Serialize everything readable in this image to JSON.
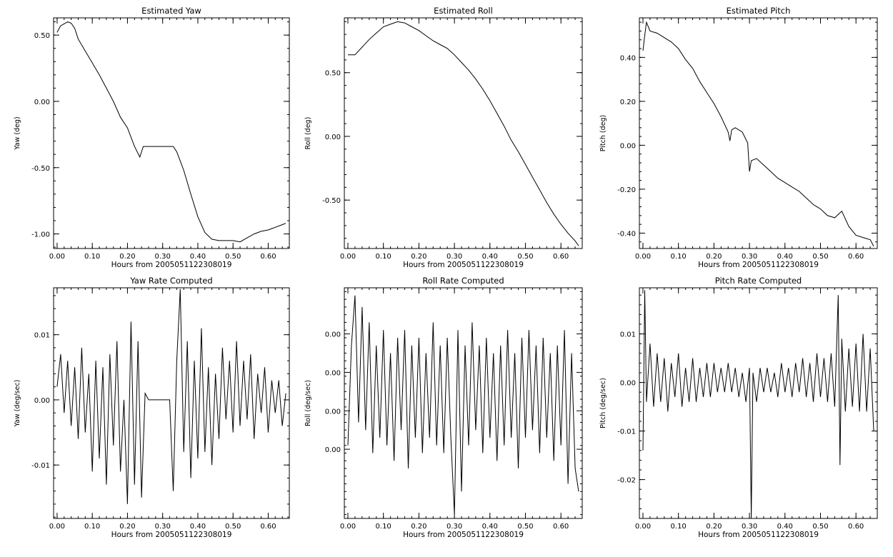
{
  "chart_data": [
    {
      "type": "line",
      "title": "Estimated Yaw",
      "xlabel": "Hours from 2005051122308019",
      "ylabel": "Yaw (deg)",
      "xlim": [
        -0.01,
        0.66
      ],
      "ylim": [
        -1.11,
        0.63
      ],
      "xticks": [
        0.0,
        0.1,
        0.2,
        0.3,
        0.4,
        0.5,
        0.6
      ],
      "xtick_labels": [
        "0.00",
        "0.10",
        "0.20",
        "0.30",
        "0.40",
        "0.50",
        "0.60"
      ],
      "yticks": [
        0.5,
        0.0,
        -0.5,
        -1.0
      ],
      "ytick_labels": [
        "0.50",
        "0.00",
        "-0.50",
        "-1.00"
      ],
      "grid": false,
      "series": [
        {
          "x": [
            0.0,
            0.01,
            0.03,
            0.04,
            0.05,
            0.06,
            0.08,
            0.1,
            0.12,
            0.14,
            0.16,
            0.18,
            0.2,
            0.22,
            0.235,
            0.245,
            0.25,
            0.26,
            0.3,
            0.33,
            0.34,
            0.36,
            0.38,
            0.4,
            0.42,
            0.44,
            0.46,
            0.48,
            0.5,
            0.52,
            0.54,
            0.56,
            0.58,
            0.6,
            0.62,
            0.64,
            0.65
          ],
          "y": [
            0.52,
            0.57,
            0.6,
            0.59,
            0.55,
            0.47,
            0.38,
            0.29,
            0.2,
            0.1,
            0.0,
            -0.12,
            -0.2,
            -0.34,
            -0.42,
            -0.34,
            -0.34,
            -0.34,
            -0.34,
            -0.34,
            -0.38,
            -0.52,
            -0.7,
            -0.87,
            -0.99,
            -1.04,
            -1.05,
            -1.05,
            -1.05,
            -1.06,
            -1.03,
            -1.0,
            -0.98,
            -0.97,
            -0.95,
            -0.93,
            -0.92
          ]
        }
      ]
    },
    {
      "type": "line",
      "title": "Estimated Roll",
      "xlabel": "Hours from 2005051122308019",
      "ylabel": "Roll (deg)",
      "xlim": [
        -0.01,
        0.66
      ],
      "ylim": [
        -0.88,
        0.93
      ],
      "xticks": [
        0.0,
        0.1,
        0.2,
        0.3,
        0.4,
        0.5,
        0.6
      ],
      "xtick_labels": [
        "0.00",
        "0.10",
        "0.20",
        "0.30",
        "0.40",
        "0.50",
        "0.60"
      ],
      "yticks": [
        0.5,
        0.0,
        -0.5
      ],
      "ytick_labels": [
        "0.50",
        "0.00",
        "-0.50"
      ],
      "grid": false,
      "series": [
        {
          "x": [
            0.0,
            0.02,
            0.04,
            0.06,
            0.08,
            0.1,
            0.12,
            0.14,
            0.16,
            0.18,
            0.2,
            0.22,
            0.24,
            0.26,
            0.28,
            0.3,
            0.32,
            0.34,
            0.36,
            0.38,
            0.4,
            0.42,
            0.44,
            0.46,
            0.48,
            0.5,
            0.52,
            0.54,
            0.56,
            0.58,
            0.6,
            0.62,
            0.64,
            0.65
          ],
          "y": [
            0.64,
            0.64,
            0.7,
            0.76,
            0.81,
            0.86,
            0.88,
            0.9,
            0.89,
            0.86,
            0.83,
            0.79,
            0.75,
            0.72,
            0.69,
            0.64,
            0.58,
            0.52,
            0.45,
            0.37,
            0.28,
            0.18,
            0.08,
            -0.03,
            -0.12,
            -0.22,
            -0.32,
            -0.42,
            -0.52,
            -0.61,
            -0.69,
            -0.76,
            -0.82,
            -0.86
          ]
        }
      ]
    },
    {
      "type": "line",
      "title": "Estimated Pitch",
      "xlabel": "Hours from 2005051122308019",
      "ylabel": "Pitch (deg)",
      "xlim": [
        -0.01,
        0.66
      ],
      "ylim": [
        -0.47,
        0.58
      ],
      "xticks": [
        0.0,
        0.1,
        0.2,
        0.3,
        0.4,
        0.5,
        0.6
      ],
      "xtick_labels": [
        "0.00",
        "0.10",
        "0.20",
        "0.30",
        "0.40",
        "0.50",
        "0.60"
      ],
      "yticks": [
        0.4,
        0.2,
        0.0,
        -0.2,
        -0.4
      ],
      "ytick_labels": [
        "0.40",
        "0.20",
        "0.00",
        "-0.20",
        "-0.40"
      ],
      "grid": false,
      "series": [
        {
          "x": [
            0.0,
            0.005,
            0.01,
            0.02,
            0.04,
            0.06,
            0.08,
            0.1,
            0.12,
            0.14,
            0.16,
            0.18,
            0.2,
            0.22,
            0.24,
            0.245,
            0.25,
            0.26,
            0.28,
            0.295,
            0.3,
            0.305,
            0.32,
            0.34,
            0.36,
            0.38,
            0.4,
            0.42,
            0.44,
            0.46,
            0.48,
            0.5,
            0.52,
            0.54,
            0.56,
            0.58,
            0.6,
            0.62,
            0.64,
            0.65
          ],
          "y": [
            0.43,
            0.5,
            0.56,
            0.52,
            0.51,
            0.49,
            0.47,
            0.44,
            0.39,
            0.35,
            0.29,
            0.24,
            0.19,
            0.13,
            0.06,
            0.02,
            0.07,
            0.08,
            0.06,
            0.01,
            -0.12,
            -0.07,
            -0.06,
            -0.09,
            -0.12,
            -0.15,
            -0.17,
            -0.19,
            -0.21,
            -0.24,
            -0.27,
            -0.29,
            -0.32,
            -0.33,
            -0.3,
            -0.37,
            -0.41,
            -0.42,
            -0.43,
            -0.46
          ]
        }
      ]
    },
    {
      "type": "line",
      "title": "Yaw Rate Computed",
      "xlabel": "Hours from 2005051122308019",
      "ylabel": "Yaw (deg/sec)",
      "xlim": [
        -0.01,
        0.66
      ],
      "ylim": [
        -0.0182,
        0.0172
      ],
      "xticks": [
        0.0,
        0.1,
        0.2,
        0.3,
        0.4,
        0.5,
        0.6
      ],
      "xtick_labels": [
        "0.00",
        "0.10",
        "0.20",
        "0.30",
        "0.40",
        "0.50",
        "0.60"
      ],
      "yticks": [
        0.01,
        0.0,
        -0.01
      ],
      "ytick_labels": [
        "0.01",
        "0.00",
        "-0.01"
      ],
      "grid": false,
      "series": [
        {
          "x": [
            0.0,
            0.01,
            0.02,
            0.03,
            0.04,
            0.05,
            0.06,
            0.07,
            0.08,
            0.09,
            0.1,
            0.11,
            0.12,
            0.13,
            0.14,
            0.15,
            0.16,
            0.17,
            0.18,
            0.19,
            0.2,
            0.21,
            0.22,
            0.23,
            0.24,
            0.25,
            0.26,
            0.32,
            0.33,
            0.34,
            0.35,
            0.36,
            0.37,
            0.38,
            0.39,
            0.4,
            0.41,
            0.42,
            0.43,
            0.44,
            0.45,
            0.46,
            0.47,
            0.48,
            0.49,
            0.5,
            0.51,
            0.52,
            0.53,
            0.54,
            0.55,
            0.56,
            0.57,
            0.58,
            0.59,
            0.6,
            0.61,
            0.62,
            0.63,
            0.64,
            0.65
          ],
          "y": [
            0.002,
            0.007,
            -0.002,
            0.006,
            -0.004,
            0.005,
            -0.006,
            0.008,
            -0.005,
            0.004,
            -0.011,
            0.006,
            -0.009,
            0.005,
            -0.013,
            0.007,
            -0.007,
            0.009,
            -0.011,
            0.0,
            -0.016,
            0.012,
            -0.013,
            0.009,
            -0.015,
            0.001,
            0.0,
            0.0,
            -0.014,
            0.006,
            0.017,
            -0.008,
            0.009,
            -0.012,
            0.006,
            -0.009,
            0.011,
            -0.008,
            0.005,
            -0.01,
            0.004,
            -0.006,
            0.008,
            -0.003,
            0.006,
            -0.005,
            0.009,
            -0.004,
            0.006,
            -0.003,
            0.007,
            -0.006,
            0.004,
            -0.002,
            0.005,
            -0.005,
            0.003,
            -0.002,
            0.003,
            -0.004,
            0.001
          ]
        }
      ]
    },
    {
      "type": "line",
      "title": "Roll Rate Computed",
      "xlabel": "Hours from 2005051122308019",
      "ylabel": "Roll (deg/sec)",
      "xlim": [
        -0.01,
        0.66
      ],
      "ylim": [
        -0.0165,
        0.0135
      ],
      "xticks": [
        0.0,
        0.1,
        0.2,
        0.3,
        0.4,
        0.5,
        0.6
      ],
      "xtick_labels": [
        "0.00",
        "0.10",
        "0.20",
        "0.30",
        "0.40",
        "0.50",
        "0.60"
      ],
      "yticks": [
        0.0075,
        0.0025,
        -0.0025,
        -0.0075
      ],
      "ytick_labels": [
        "0.00",
        "0.00",
        "0.00",
        "0.00"
      ],
      "grid": false,
      "series": [
        {
          "x": [
            0.0,
            0.01,
            0.02,
            0.03,
            0.04,
            0.05,
            0.06,
            0.07,
            0.08,
            0.09,
            0.1,
            0.11,
            0.12,
            0.13,
            0.14,
            0.15,
            0.16,
            0.17,
            0.18,
            0.19,
            0.2,
            0.21,
            0.22,
            0.23,
            0.24,
            0.25,
            0.26,
            0.27,
            0.28,
            0.29,
            0.3,
            0.31,
            0.32,
            0.33,
            0.34,
            0.35,
            0.36,
            0.37,
            0.38,
            0.39,
            0.4,
            0.41,
            0.42,
            0.43,
            0.44,
            0.45,
            0.46,
            0.47,
            0.48,
            0.49,
            0.5,
            0.51,
            0.52,
            0.53,
            0.54,
            0.55,
            0.56,
            0.57,
            0.58,
            0.59,
            0.6,
            0.61,
            0.62,
            0.63,
            0.64,
            0.65
          ],
          "y": [
            -0.007,
            0.006,
            0.0125,
            -0.004,
            0.011,
            -0.005,
            0.009,
            -0.008,
            0.006,
            -0.006,
            0.008,
            -0.007,
            0.005,
            -0.009,
            0.007,
            -0.005,
            0.008,
            -0.01,
            0.006,
            -0.006,
            0.007,
            -0.008,
            0.005,
            -0.006,
            0.009,
            -0.007,
            0.006,
            -0.008,
            0.007,
            -0.006,
            -0.016,
            0.008,
            -0.013,
            0.006,
            -0.007,
            0.009,
            -0.005,
            0.006,
            -0.008,
            0.007,
            -0.006,
            0.005,
            -0.009,
            0.006,
            -0.007,
            0.008,
            -0.006,
            0.005,
            -0.01,
            0.007,
            -0.006,
            0.008,
            -0.005,
            0.006,
            -0.008,
            0.007,
            -0.006,
            0.005,
            -0.009,
            0.006,
            -0.007,
            0.008,
            -0.012,
            0.005,
            -0.01,
            -0.013
          ]
        }
      ]
    },
    {
      "type": "line",
      "title": "Pitch Rate Computed",
      "xlabel": "Hours from 2005051122308019",
      "ylabel": "Pitch (deg/sec)",
      "xlim": [
        -0.01,
        0.66
      ],
      "ylim": [
        -0.028,
        0.0195
      ],
      "xticks": [
        0.0,
        0.1,
        0.2,
        0.3,
        0.4,
        0.5,
        0.6
      ],
      "xtick_labels": [
        "0.00",
        "0.10",
        "0.20",
        "0.30",
        "0.40",
        "0.50",
        "0.60"
      ],
      "yticks": [
        0.01,
        0.0,
        -0.01,
        -0.02
      ],
      "ytick_labels": [
        "0.01",
        "0.00",
        "-0.01",
        "-0.02"
      ],
      "grid": false,
      "series": [
        {
          "x": [
            0.0,
            0.005,
            0.01,
            0.02,
            0.03,
            0.04,
            0.05,
            0.06,
            0.07,
            0.08,
            0.09,
            0.1,
            0.11,
            0.12,
            0.13,
            0.14,
            0.15,
            0.16,
            0.17,
            0.18,
            0.19,
            0.2,
            0.21,
            0.22,
            0.23,
            0.24,
            0.25,
            0.26,
            0.27,
            0.28,
            0.29,
            0.3,
            0.305,
            0.31,
            0.32,
            0.33,
            0.34,
            0.35,
            0.36,
            0.37,
            0.38,
            0.39,
            0.4,
            0.41,
            0.42,
            0.43,
            0.44,
            0.45,
            0.46,
            0.47,
            0.48,
            0.49,
            0.5,
            0.51,
            0.52,
            0.53,
            0.54,
            0.55,
            0.555,
            0.56,
            0.57,
            0.58,
            0.59,
            0.6,
            0.61,
            0.62,
            0.63,
            0.64,
            0.65
          ],
          "y": [
            -0.014,
            0.019,
            -0.004,
            0.008,
            -0.005,
            0.006,
            -0.004,
            0.005,
            -0.006,
            0.004,
            -0.003,
            0.006,
            -0.005,
            0.003,
            -0.004,
            0.005,
            -0.004,
            0.003,
            -0.003,
            0.004,
            -0.003,
            0.004,
            -0.002,
            0.003,
            -0.002,
            0.004,
            -0.002,
            0.003,
            -0.003,
            0.002,
            -0.004,
            0.003,
            -0.028,
            0.002,
            -0.004,
            0.003,
            -0.002,
            0.003,
            -0.002,
            0.002,
            -0.003,
            0.004,
            -0.002,
            0.003,
            -0.003,
            0.004,
            -0.002,
            0.005,
            -0.003,
            0.004,
            -0.004,
            0.006,
            -0.003,
            0.005,
            -0.004,
            0.006,
            -0.005,
            0.018,
            -0.017,
            0.009,
            -0.006,
            0.007,
            -0.005,
            0.008,
            -0.006,
            0.01,
            -0.006,
            0.007,
            -0.01
          ]
        }
      ]
    }
  ]
}
